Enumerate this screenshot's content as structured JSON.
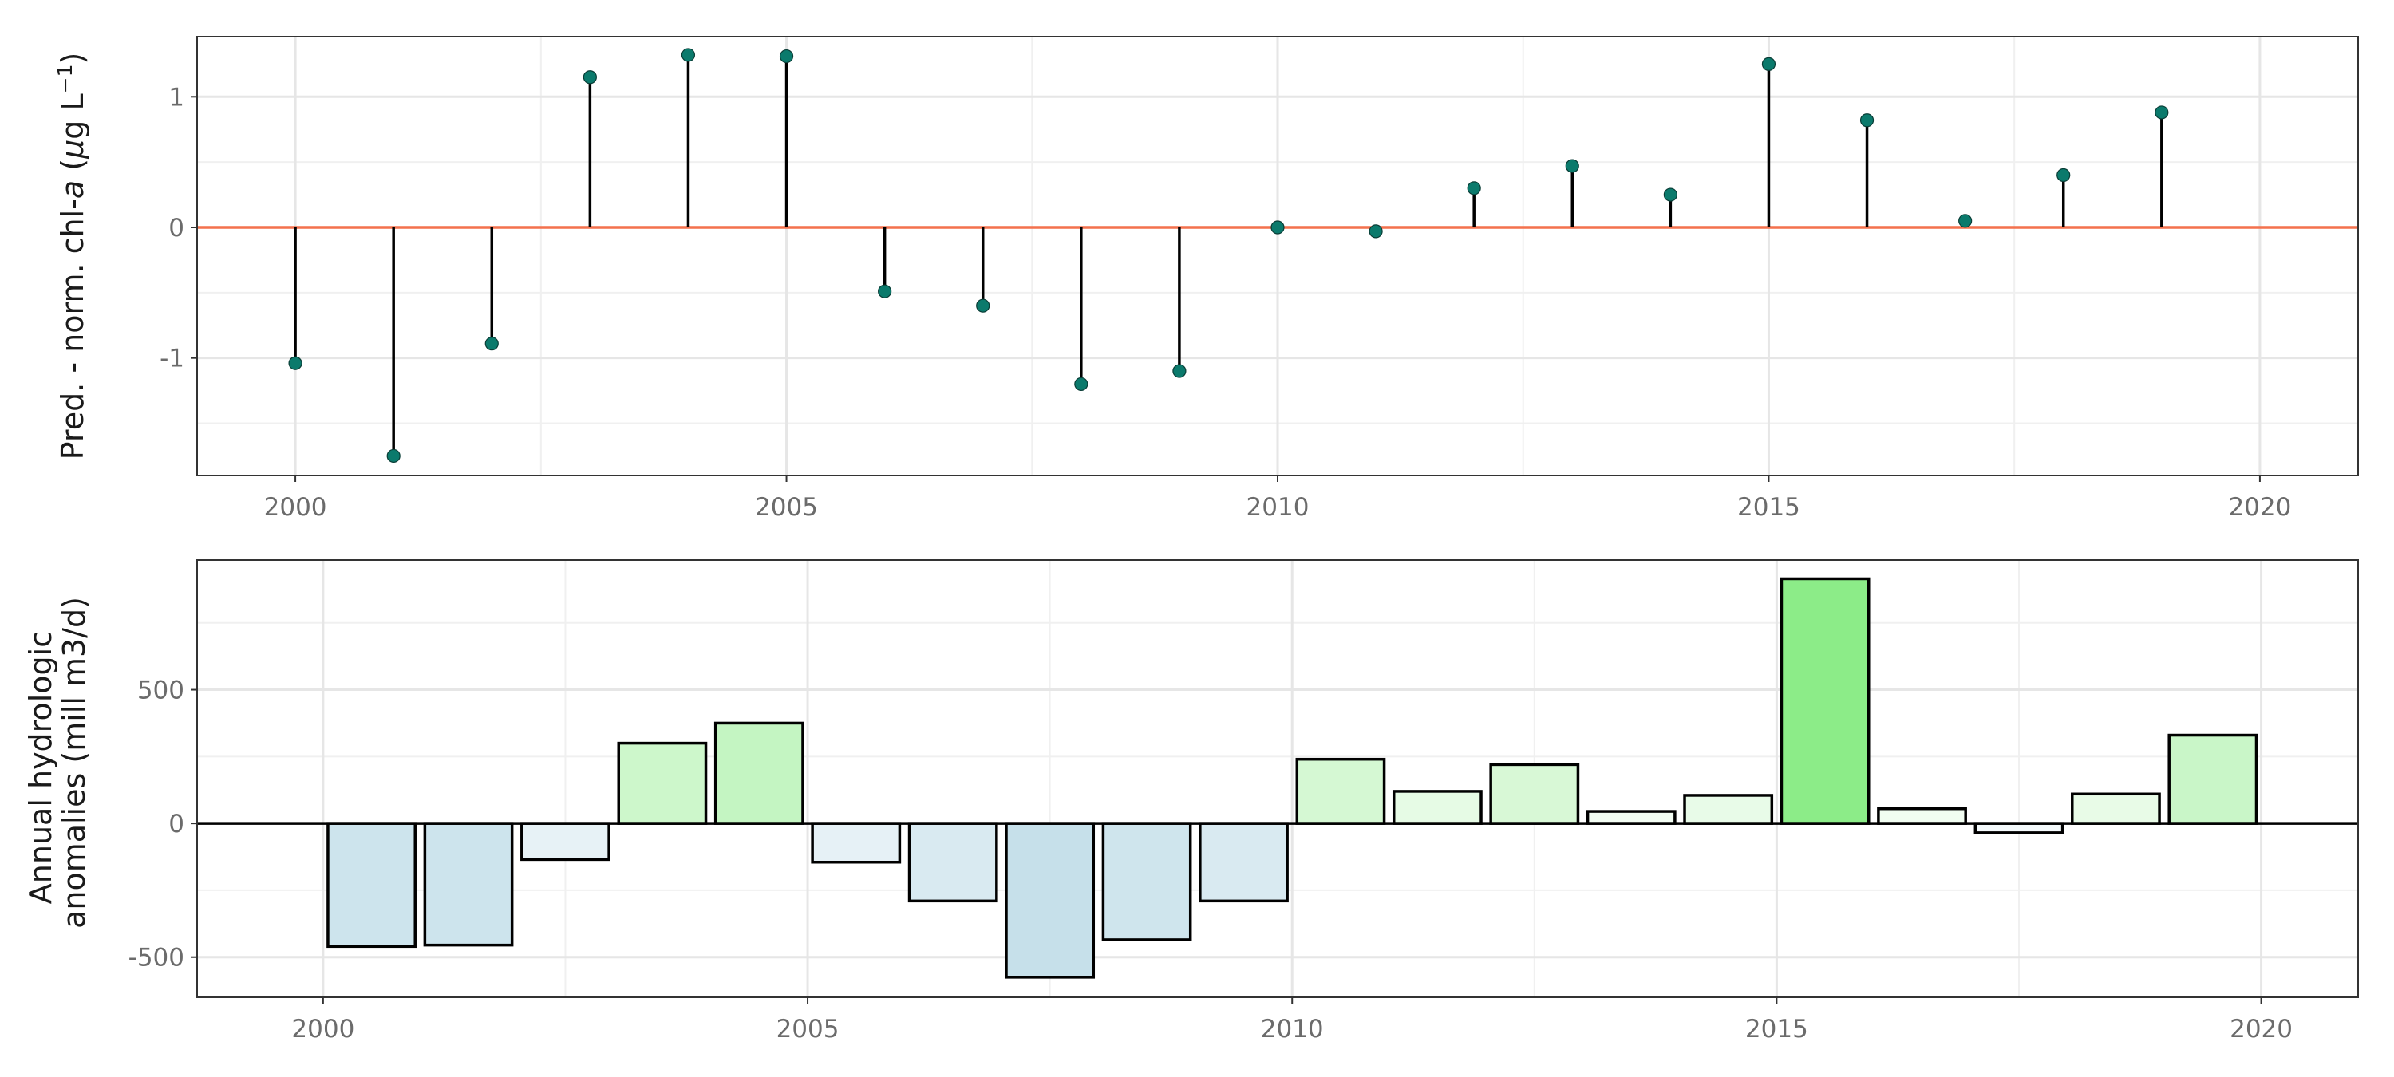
{
  "chart_data": [
    {
      "type": "scatter",
      "style": "lollipop",
      "ylabel": {
        "text": "Pred. - norm. chl-",
        "italic": "a",
        "unit_open": " (",
        "unit_mu": "μ",
        "unit_rest": "g L",
        "unit_exp": "−1",
        "unit_close": ")"
      },
      "xlabel": "",
      "xlim": [
        1999.0,
        2021.0
      ],
      "ylim": [
        -1.9,
        1.46
      ],
      "x_ticks": [
        2000,
        2005,
        2010,
        2015,
        2020
      ],
      "y_ticks": [
        -1,
        0,
        1
      ],
      "y_tick_labels": [
        "-1",
        "0",
        "1"
      ],
      "grid": true,
      "reference_line": {
        "y": 0,
        "color": "#f4714d"
      },
      "point_color": "#0b7a6c",
      "series": [
        {
          "x": [
            2000,
            2001,
            2002,
            2003,
            2004,
            2005,
            2006,
            2007,
            2008,
            2009,
            2010,
            2011,
            2012,
            2013,
            2014,
            2015,
            2016,
            2017,
            2018,
            2019
          ],
          "y": [
            -1.04,
            -1.75,
            -0.89,
            1.15,
            1.32,
            1.31,
            -0.49,
            -0.6,
            -1.2,
            -1.1,
            0.0,
            -0.03,
            0.3,
            0.47,
            0.25,
            1.25,
            0.82,
            0.05,
            0.4,
            0.88
          ]
        }
      ]
    },
    {
      "type": "bar",
      "ylabel": [
        "Annual hydrologic",
        "anomalies (mill m3/d)"
      ],
      "xlabel": "",
      "xlim": [
        1998.7,
        2021.0
      ],
      "ylim": [
        -650,
        985
      ],
      "x_ticks": [
        2000,
        2005,
        2010,
        2015,
        2020
      ],
      "y_ticks": [
        -500,
        0,
        500
      ],
      "y_tick_labels": [
        "-500",
        "0",
        "500"
      ],
      "grid": true,
      "reference_line": {
        "y": 0,
        "color": "#000000"
      },
      "x": [
        2000,
        2001,
        2002,
        2003,
        2004,
        2005,
        2006,
        2007,
        2008,
        2009,
        2010,
        2011,
        2012,
        2013,
        2014,
        2015,
        2016,
        2017,
        2018,
        2019
      ],
      "values": [
        -460,
        -455,
        -135,
        300,
        375,
        -145,
        -290,
        -575,
        -435,
        -290,
        240,
        120,
        220,
        45,
        105,
        915,
        55,
        -35,
        110,
        330
      ],
      "colors": {
        "negative_max": "#c6e0ea",
        "positive_max": "#8cec88",
        "neutral": "#ffffff"
      }
    }
  ]
}
